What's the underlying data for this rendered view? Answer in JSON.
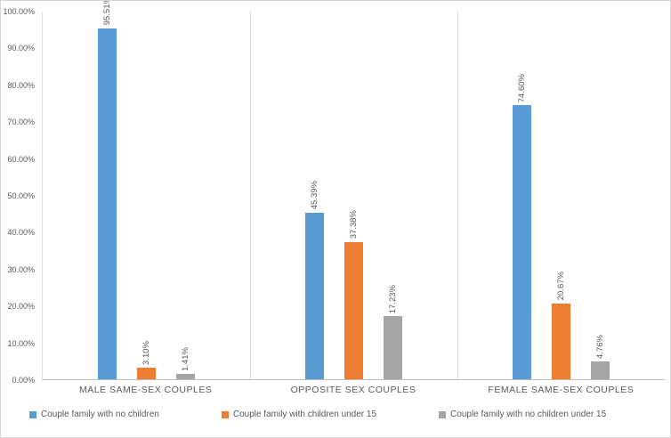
{
  "chart_data": {
    "type": "bar",
    "title": "",
    "xlabel": "",
    "ylabel": "",
    "ylim": [
      0,
      100
    ],
    "grid": "category-separators-only",
    "legend_position": "bottom",
    "y_ticks": [
      "100.00%",
      "90.00%",
      "80.00%",
      "70.00%",
      "60.00%",
      "50.00%",
      "40.00%",
      "30.00%",
      "20.00%",
      "10.00%",
      "0.00%"
    ],
    "categories": [
      "MALE SAME-SEX COUPLES",
      "OPPOSITE SEX COUPLES",
      "FEMALE SAME-SEX COUPLES"
    ],
    "series": [
      {
        "name": "Couple family with no children",
        "color": "#5B9BD5",
        "values": [
          95.51,
          45.39,
          74.6
        ],
        "labels": [
          "95.51%",
          "45.39%",
          "74.60%"
        ]
      },
      {
        "name": "Couple  family with children under 15",
        "color": "#ED7D31",
        "values": [
          3.1,
          37.38,
          20.67
        ],
        "labels": [
          "3.10%",
          "37.38%",
          "20.67%"
        ]
      },
      {
        "name": "Couple family with no children under 15",
        "color": "#A5A5A5",
        "values": [
          1.41,
          17.23,
          4.76
        ],
        "labels": [
          "1.41%",
          "17.23%",
          "4.76%"
        ]
      }
    ]
  }
}
